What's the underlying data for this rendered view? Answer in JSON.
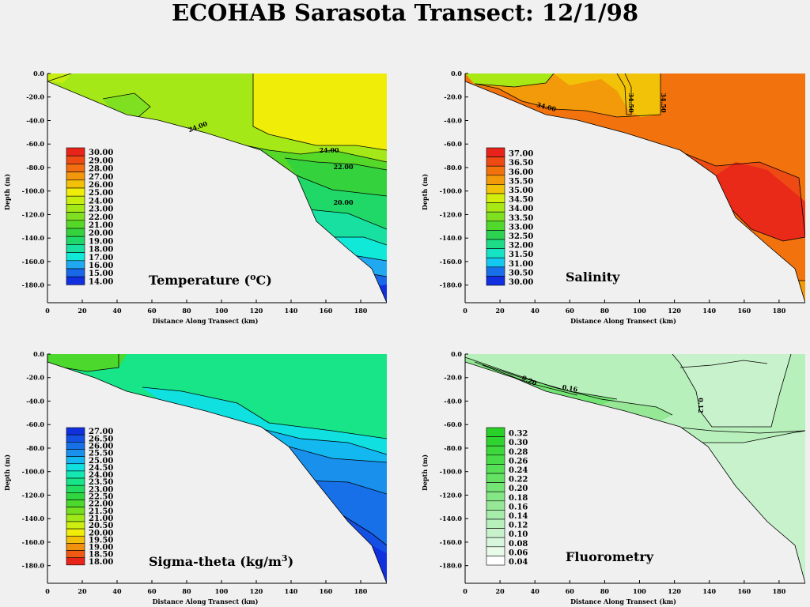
{
  "title": "ECOHAB Sarasota Transect: 12/1/98",
  "chart_data": [
    {
      "type": "heatmap",
      "id": "temperature",
      "title": "Temperature (",
      "title_sup": "o",
      "title_end": "C)",
      "xlabel": "Distance Along Transect (km)",
      "ylabel": "Depth (m)",
      "xlim": [
        0,
        195
      ],
      "ylim": [
        0,
        -195
      ],
      "xticks": [
        0,
        20,
        40,
        60,
        80,
        100,
        120,
        140,
        160,
        180
      ],
      "yticks": [
        "0.0",
        "-20.0",
        "-40.0",
        "-60.0",
        "-80.0",
        "-100.0",
        "-120.0",
        "-140.0",
        "-160.0",
        "-180.0"
      ],
      "legend_levels": [
        "30.00",
        "29.00",
        "28.00",
        "27.00",
        "26.00",
        "25.00",
        "24.00",
        "23.00",
        "22.00",
        "21.00",
        "20.00",
        "19.00",
        "18.00",
        "17.00",
        "16.00",
        "15.00",
        "14.00"
      ],
      "legend_colors": [
        "#e8241a",
        "#ee4a14",
        "#f26e10",
        "#f2960c",
        "#f2c008",
        "#f0ee08",
        "#c8ee10",
        "#a4e818",
        "#7ee020",
        "#56d828",
        "#34d23c",
        "#20d868",
        "#18e0a0",
        "#10e8d8",
        "#20a8f0",
        "#1868e8",
        "#1030e0"
      ],
      "contour_labels": [
        "24.00",
        "24.00",
        "22.00",
        "20.00"
      ]
    },
    {
      "type": "heatmap",
      "id": "salinity",
      "title": "Salinity",
      "xlabel": "Distance Along Transect (km)",
      "ylabel": "Depth (m)",
      "xlim": [
        0,
        195
      ],
      "ylim": [
        0,
        -195
      ],
      "xticks": [
        0,
        20,
        40,
        60,
        80,
        100,
        120,
        140,
        160,
        180
      ],
      "yticks": [
        "0.0",
        "-20.0",
        "-40.0",
        "-60.0",
        "-80.0",
        "-100.0",
        "-120.0",
        "-140.0",
        "-160.0",
        "-180.0"
      ],
      "legend_levels": [
        "37.00",
        "36.50",
        "36.00",
        "35.50",
        "35.00",
        "34.50",
        "34.00",
        "33.50",
        "33.00",
        "32.50",
        "32.00",
        "31.50",
        "31.00",
        "30.50",
        "30.00"
      ],
      "legend_colors": [
        "#e8241a",
        "#ee4a14",
        "#f2720e",
        "#f29a0a",
        "#f2c208",
        "#d4ee0c",
        "#a8e814",
        "#7ee020",
        "#50d82c",
        "#2cd250",
        "#1cdc88",
        "#14e4c4",
        "#14c8f0",
        "#1870e8",
        "#1030e0"
      ],
      "contour_labels": [
        "34.00",
        "34.50",
        "34.50"
      ]
    },
    {
      "type": "heatmap",
      "id": "sigma-theta",
      "title": "Sigma-theta  (kg/m",
      "title_sup": "3",
      "title_end": ")",
      "xlabel": "Distance Along Transect (km)",
      "ylabel": "Depth (m)",
      "xlim": [
        0,
        195
      ],
      "ylim": [
        0,
        -195
      ],
      "xticks": [
        0,
        20,
        40,
        60,
        80,
        100,
        120,
        140,
        160,
        180
      ],
      "yticks": [
        "0.0",
        "-20.0",
        "-40.0",
        "-60.0",
        "-80.0",
        "-100.0",
        "-120.0",
        "-140.0",
        "-160.0",
        "-180.0"
      ],
      "legend_levels": [
        "27.00",
        "26.50",
        "26.00",
        "25.50",
        "25.00",
        "24.50",
        "24.00",
        "23.50",
        "23.00",
        "22.50",
        "22.00",
        "21.50",
        "21.00",
        "20.50",
        "20.00",
        "19.50",
        "19.00",
        "18.50",
        "18.00"
      ],
      "legend_colors": [
        "#1030e0",
        "#1450e4",
        "#1870e8",
        "#1890ec",
        "#14b8f0",
        "#10e0e0",
        "#14e8b0",
        "#18e488",
        "#20dc60",
        "#30d640",
        "#4cd82c",
        "#74e020",
        "#a0e818",
        "#ccee10",
        "#f0ee08",
        "#f2c008",
        "#f29010",
        "#ee5a14",
        "#e8241a"
      ],
      "contour_labels": []
    },
    {
      "type": "heatmap",
      "id": "fluorometry",
      "title": "Fluorometry",
      "xlabel": "Distance Along Transect (km)",
      "ylabel": "Depth (m)",
      "xlim": [
        0,
        195
      ],
      "ylim": [
        0,
        -195
      ],
      "xticks": [
        0,
        20,
        40,
        60,
        80,
        100,
        120,
        140,
        160,
        180
      ],
      "yticks": [
        "0.0",
        "-20.0",
        "-40.0",
        "-60.0",
        "-80.0",
        "-100.0",
        "-120.0",
        "-140.0",
        "-160.0",
        "-180.0"
      ],
      "legend_levels": [
        "0.32",
        "0.30",
        "0.28",
        "0.26",
        "0.24",
        "0.22",
        "0.20",
        "0.18",
        "0.16",
        "0.14",
        "0.12",
        "0.10",
        "0.08",
        "0.06",
        "0.04"
      ],
      "legend_colors": [
        "#28d028",
        "#30d430",
        "#3cd83c",
        "#48dc48",
        "#56e056",
        "#64e264",
        "#74e474",
        "#84e684",
        "#96e896",
        "#a6ecaa",
        "#b8f0bc",
        "#c8f2cc",
        "#d8f6dc",
        "#e8fae8",
        "#ffffff"
      ],
      "contour_labels": [
        "0.20",
        "0.16",
        "0.12"
      ]
    }
  ]
}
